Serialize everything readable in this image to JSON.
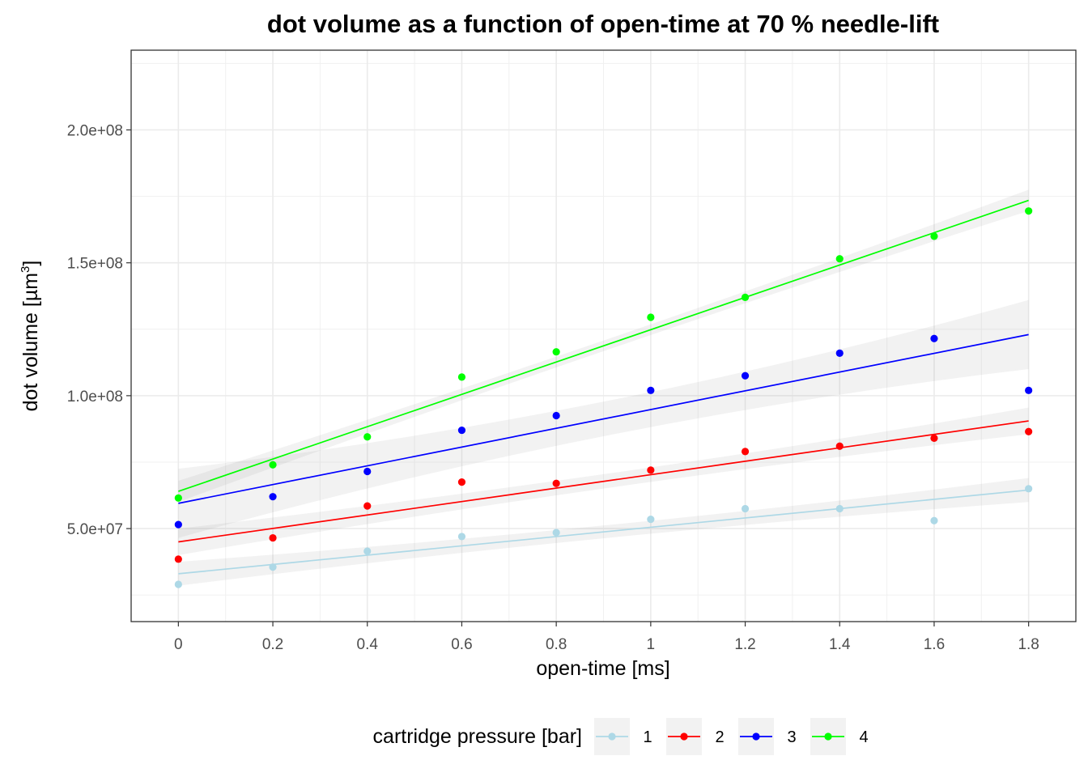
{
  "chart_data": {
    "type": "scatter",
    "title": "dot volume as a function of open-time at 70 % needle-lift",
    "xlabel": "open-time [ms]",
    "ylabel_text": "dot volume [µm",
    "ylabel_superscript": "3",
    "ylabel_suffix": "]",
    "xlim": [
      -0.1,
      1.9
    ],
    "ylim": [
      15000000,
      230000000
    ],
    "x_ticks": [
      0,
      0.2,
      0.4,
      0.6,
      0.8,
      1,
      1.2,
      1.4,
      1.6,
      1.8
    ],
    "x_tick_labels": [
      "0",
      "0.2",
      "0.4",
      "0.6",
      "0.8",
      "1",
      "1.2",
      "1.4",
      "1.6",
      "1.8"
    ],
    "y_ticks": [
      50000000,
      100000000,
      150000000,
      200000000
    ],
    "y_tick_labels": [
      "5.0e+07",
      "1.0e+08",
      "1.5e+08",
      "2.0e+08"
    ],
    "y_minor_ticks": [
      25000000,
      75000000,
      125000000,
      175000000,
      225000000
    ],
    "grid": true,
    "legend": {
      "title": "cartridge pressure [bar]",
      "placement": "bottom"
    },
    "x": [
      0,
      0.2,
      0.4,
      0.6,
      0.8,
      1,
      1.2,
      1.4,
      1.6,
      1.8
    ],
    "series": [
      {
        "name": "1",
        "color": "#add8e6",
        "values": [
          29000000,
          35500000,
          41500000,
          47000000,
          48500000,
          53500000,
          57500000,
          57500000,
          53000000,
          65000000
        ],
        "fit": {
          "start": 33000000,
          "end": 64500000
        },
        "band_halfwidth": [
          4500000,
          2400000,
          4500000
        ]
      },
      {
        "name": "2",
        "color": "#ff0000",
        "values": [
          38500000,
          46500000,
          58500000,
          67500000,
          67000000,
          72000000,
          79000000,
          81000000,
          84000000,
          86500000
        ],
        "fit": {
          "start": 45000000,
          "end": 90500000
        },
        "band_halfwidth": [
          5000000,
          2700000,
          5000000
        ]
      },
      {
        "name": "3",
        "color": "#0000ff",
        "values": [
          51500000,
          62000000,
          71500000,
          87000000,
          92500000,
          102000000,
          107500000,
          116000000,
          121500000,
          102000000
        ],
        "fit": {
          "start": 59500000,
          "end": 123000000
        },
        "band_halfwidth": [
          13000000,
          6500000,
          13000000
        ]
      },
      {
        "name": "4",
        "color": "#00ff00",
        "values": [
          61500000,
          74000000,
          84500000,
          107000000,
          116500000,
          129500000,
          137000000,
          151500000,
          160000000,
          169500000
        ],
        "fit": {
          "start": 64000000,
          "end": 173500000
        },
        "band_halfwidth": [
          4000000,
          2000000,
          4000000
        ]
      }
    ]
  }
}
